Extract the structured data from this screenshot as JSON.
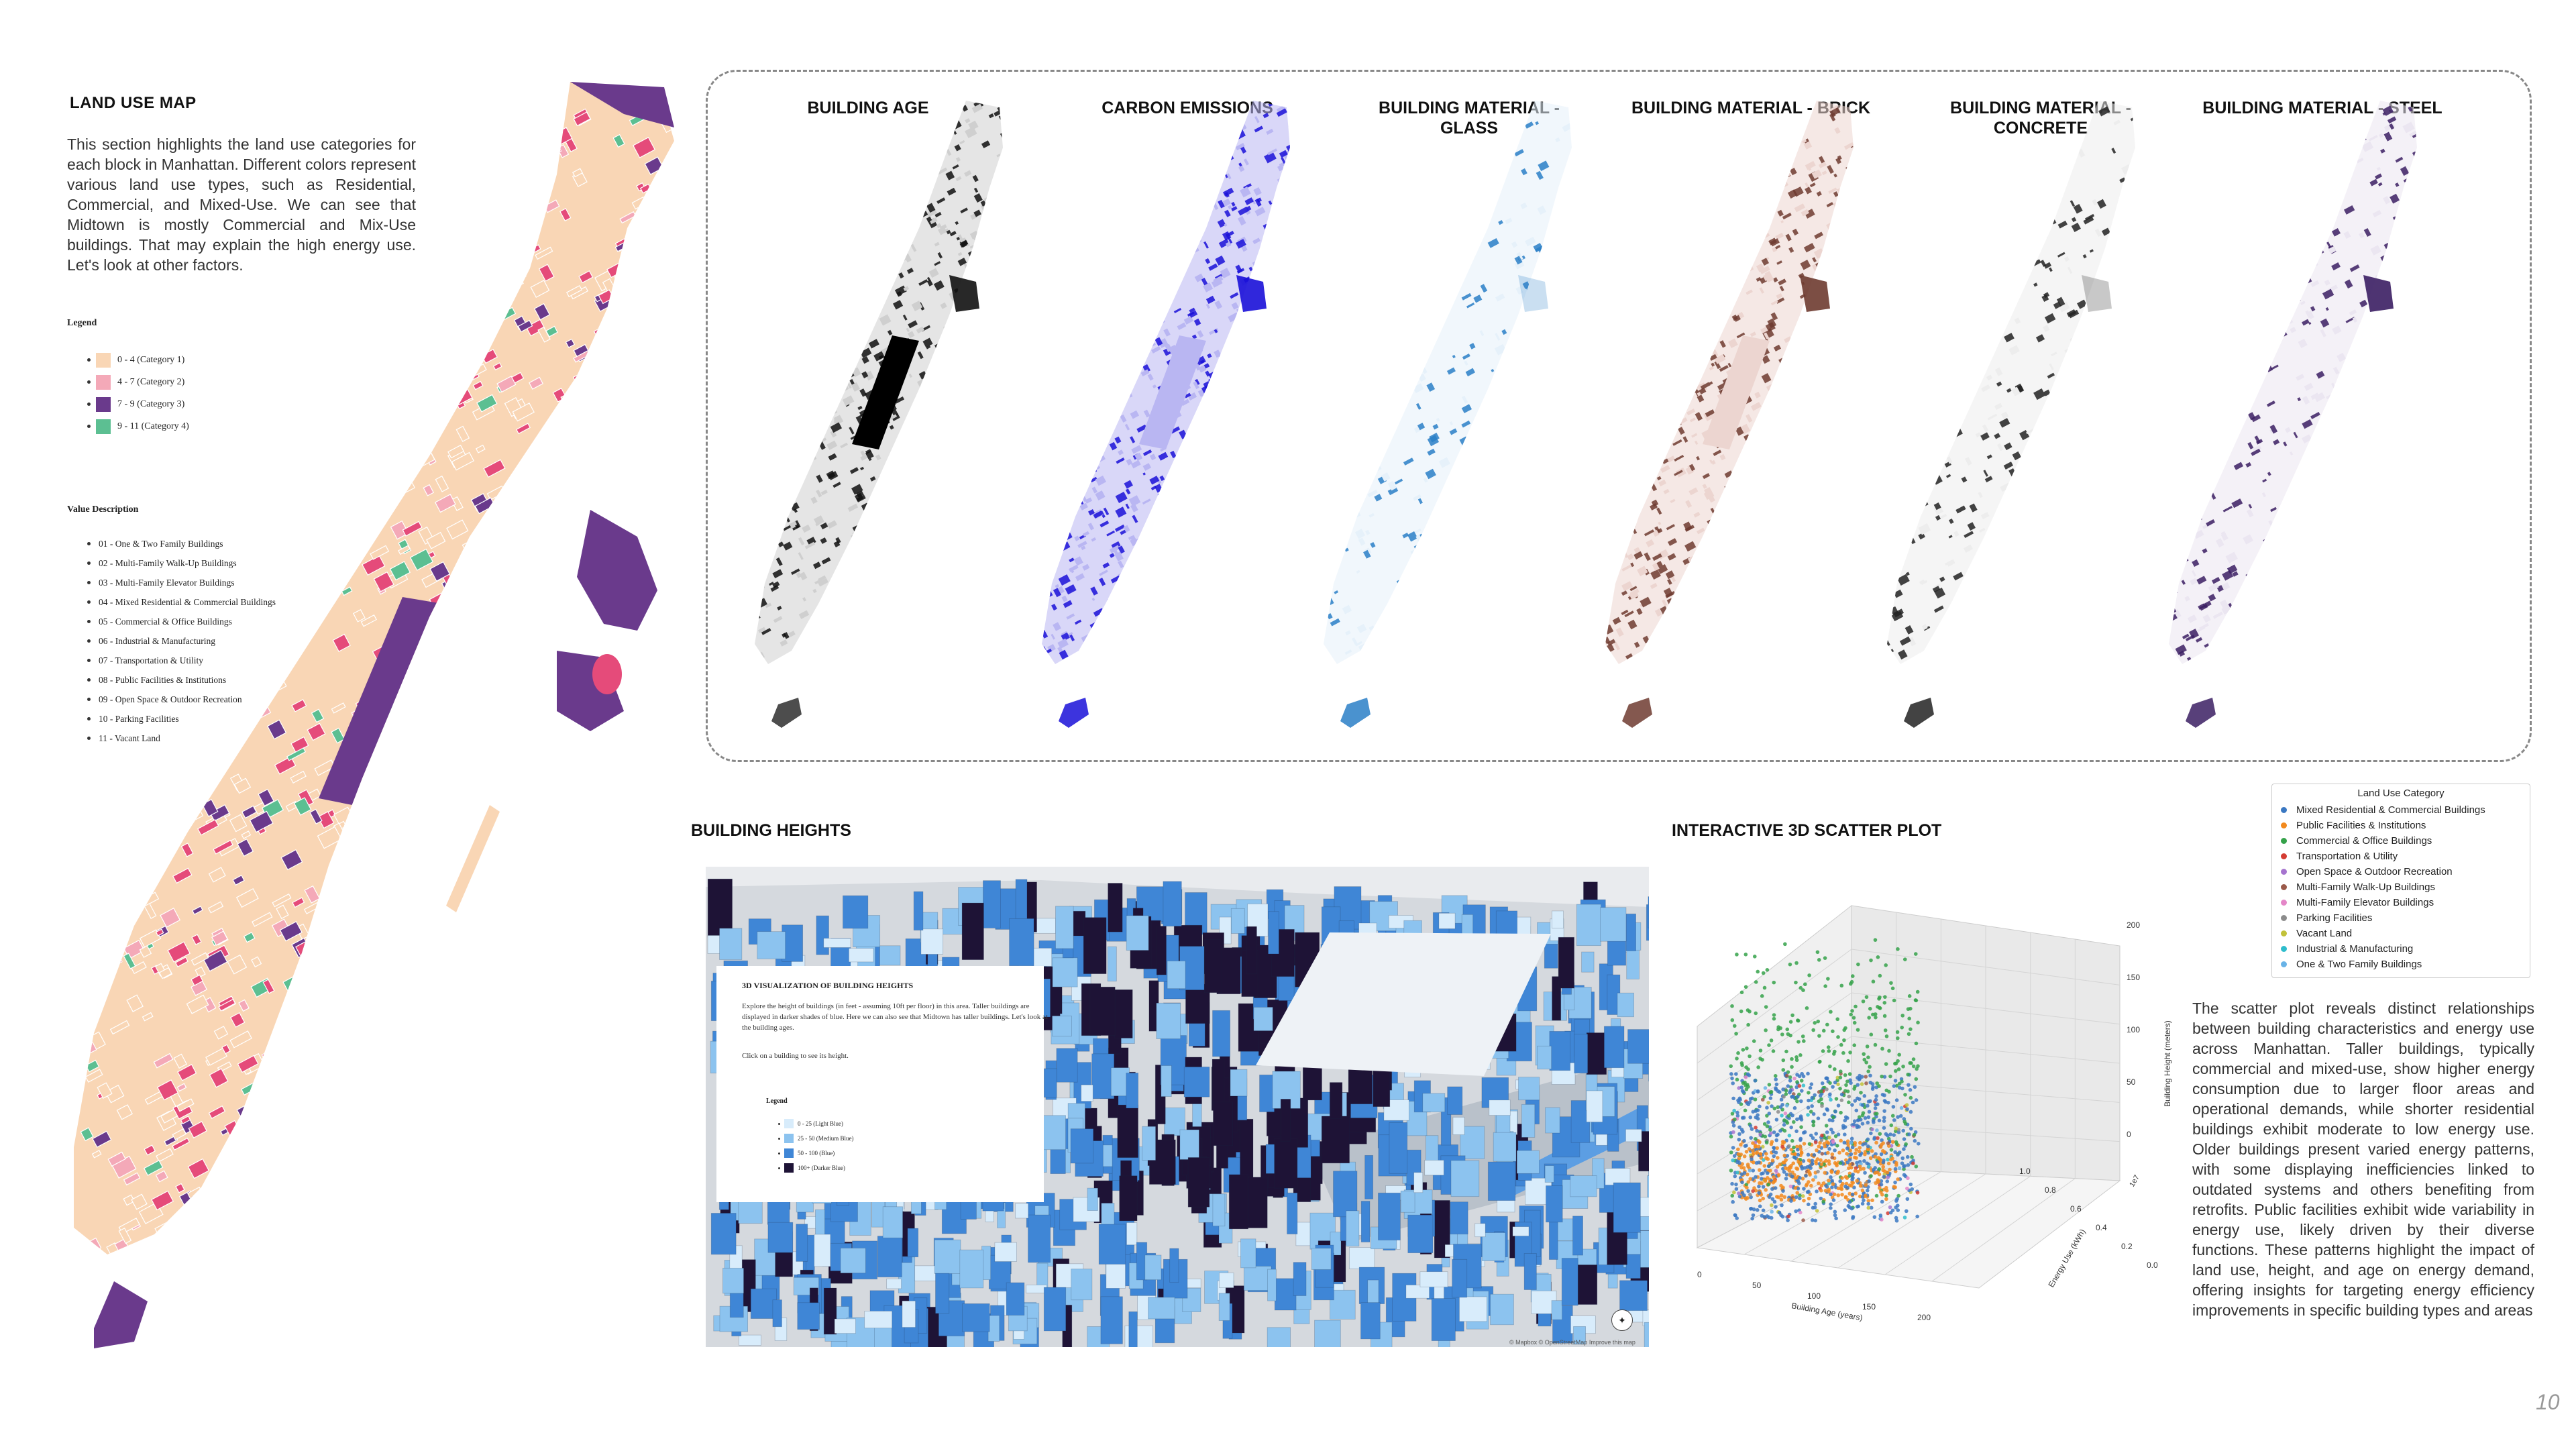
{
  "land_use": {
    "title": "LAND USE MAP",
    "description": "This section highlights the land use categories for each block in Manhattan. Different colors represent various land use types, such as Residential, Commercial, and Mixed-Use. We can see that Midtown is mostly Commercial and Mix-Use buildings. That may explain the high energy use. Let's look at other factors.",
    "legend_title": "Legend",
    "legend": [
      {
        "label": "0 - 4 (Category 1)",
        "color": "#f9d6b5"
      },
      {
        "label": "4 - 7 (Category 2)",
        "color": "#f4a9b8"
      },
      {
        "label": "7 - 9 (Category 3)",
        "color": "#6a3a8c"
      },
      {
        "label": "9 - 11 (Category 4)",
        "color": "#5cbf92"
      }
    ],
    "value_title": "Value Description",
    "values": [
      "01 - One & Two Family Buildings",
      "02 - Multi-Family Walk-Up Buildings",
      "03 - Multi-Family Elevator Buildings",
      "04 - Mixed Residential & Commercial Buildings",
      "05 - Commercial & Office Buildings",
      "06 - Industrial & Manufacturing",
      "07 - Transportation & Utility",
      "08 - Public Facilities & Institutions",
      "09 - Open Space & Outdoor Recreation",
      "10 - Parking Facilities",
      "11 - Vacant Land"
    ]
  },
  "maps": [
    {
      "title": "BUILDING AGE",
      "color": "#111111",
      "light": "#cfcfcf"
    },
    {
      "title": "CARBON EMISSIONS",
      "color": "#1a10d8",
      "light": "#b9b6f2"
    },
    {
      "title": "BUILDING MATERIAL - GLASS",
      "color": "#2a7fc7",
      "light": "#e6f1fa"
    },
    {
      "title": "BUILDING MATERIAL - BRICK",
      "color": "#6e3b30",
      "light": "#ecd5d0"
    },
    {
      "title": "BUILDING MATERIAL - CONCRETE",
      "color": "#222222",
      "light": "#ededed"
    },
    {
      "title": "BUILDING MATERIAL - STEEL",
      "color": "#3b1e63",
      "light": "#ebe6f1"
    }
  ],
  "heights": {
    "title": "BUILDING HEIGHTS",
    "info_title": "3D VISUALIZATION OF BUILDING HEIGHTS",
    "info_text": "Explore the height of buildings (in feet - assuming 10ft per floor) in this area. Taller buildings are displayed in darker shades of blue. Here we can also see that Midtown has taller buildings. Let's look at the building ages.",
    "info_click": "Click on a building to see its height.",
    "legend_title": "Legend",
    "legend": [
      {
        "label": "0 - 25 (Light Blue)",
        "color": "#d8ecfb"
      },
      {
        "label": "25 - 50 (Medium Blue)",
        "color": "#8cc3ef"
      },
      {
        "label": "50 - 100 (Blue)",
        "color": "#3f86d6"
      },
      {
        "label": "100+ (Darker Blue)",
        "color": "#1e1336"
      }
    ],
    "attribution": "© Mapbox © OpenStreetMap Improve this map"
  },
  "scatter": {
    "title": "INTERACTIVE 3D SCATTER PLOT",
    "legend_title": "Land Use Category",
    "legend": [
      {
        "label": "Mixed Residential & Commercial Buildings",
        "color": "#3b78c2"
      },
      {
        "label": "Public Facilities & Institutions",
        "color": "#f28a1e"
      },
      {
        "label": "Commercial & Office Buildings",
        "color": "#35a24a"
      },
      {
        "label": "Transportation & Utility",
        "color": "#d43c33"
      },
      {
        "label": "Open Space & Outdoor Recreation",
        "color": "#a674cf"
      },
      {
        "label": "Multi-Family Walk-Up Buildings",
        "color": "#9b5a4a"
      },
      {
        "label": "Multi-Family Elevator Buildings",
        "color": "#e487c8"
      },
      {
        "label": "Parking Facilities",
        "color": "#8c8c8c"
      },
      {
        "label": "Vacant Land",
        "color": "#c2c23a"
      },
      {
        "label": "Industrial & Manufacturing",
        "color": "#2fbdcc"
      },
      {
        "label": "One & Two Family Buildings",
        "color": "#69b3e7"
      }
    ],
    "xlabel": "Building Age (years)",
    "ylabel": "Energy Use (kWh)",
    "zlabel": "Building Height (meters)",
    "x_ticks": [
      "0",
      "50",
      "100",
      "150",
      "200"
    ],
    "y_ticks": [
      "0.0",
      "0.2",
      "0.4",
      "0.6",
      "0.8",
      "1.0"
    ],
    "z_ticks": [
      "0",
      "50",
      "100",
      "150",
      "200"
    ],
    "y_exponent": "1e7",
    "description": "The scatter plot reveals distinct relationships between building characteristics and energy use across Manhattan. Taller buildings, typically commercial and mixed-use, show higher energy consumption due to larger floor areas and operational demands, while shorter residential buildings exhibit moderate to low energy use. Older buildings present varied energy patterns, with some displaying inefficiencies linked to outdated systems and others benefiting from retrofits. Public facilities exhibit wide variability in energy use, likely driven by their diverse functions. These patterns highlight the impact of land use, height, and age on energy demand, offering insights for targeting energy efficiency improvements in specific building types and areas"
  },
  "page_number": "10"
}
